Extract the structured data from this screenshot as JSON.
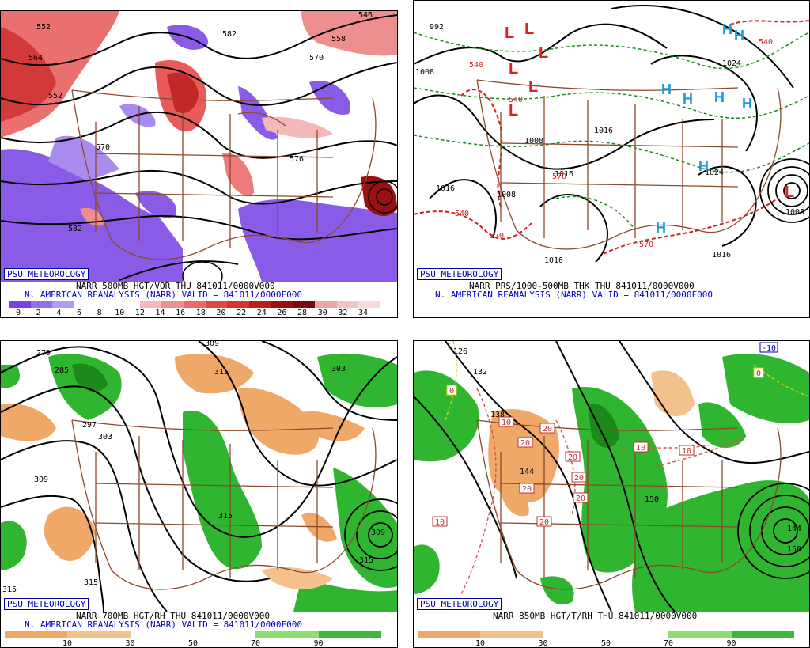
{
  "panels": [
    {
      "id": "vorticity",
      "brand": "PSU METEOROLOGY",
      "caption_line1": "NARR 500MB HGT/VOR THU 841011/0000V000",
      "caption_line2": "N. AMERICAN REANALYSIS (NARR) VALID = 841011/0000F000",
      "colorbar": {
        "labels": [
          "0",
          "2",
          "4",
          "6",
          "8",
          "10",
          "12",
          "14",
          "16",
          "18",
          "20",
          "22",
          "24",
          "26",
          "28",
          "30",
          "32",
          "34"
        ],
        "colors": [
          "#7b3fe4",
          "#9070e8",
          "#b09cf0",
          "#ffffff",
          "#ffffff",
          "#ffffff",
          "#ffffff",
          "#f4b8b8",
          "#ee8f8f",
          "#e96a6a",
          "#e04848",
          "#d23434",
          "#b81e1e",
          "#9a1010",
          "#7a0a0a",
          "#e9a6a6",
          "#f2c4c4",
          "#f9dada"
        ]
      },
      "contour_labels": [
        "552",
        "570",
        "558",
        "546",
        "582",
        "564",
        "552",
        "576",
        "570",
        "582"
      ]
    },
    {
      "id": "thickness",
      "brand": "PSU METEOROLOGY",
      "caption_line1": "NARR PRS/1000-500MB THK THU 841011/0000V000",
      "caption_line2": "N. AMERICAN REANALYSIS (NARR) VALID = 841011/0000F000",
      "pressure_labels": [
        "992",
        "1008",
        "1016",
        "1008",
        "1008",
        "1016",
        "1016",
        "1016",
        "1016",
        "1024",
        "1008",
        "1024"
      ],
      "thickness_labels": [
        "540",
        "540",
        "570",
        "540",
        "570",
        "570",
        "540"
      ],
      "centers": {
        "low": "L",
        "high": "H"
      }
    },
    {
      "id": "rh700",
      "brand": "PSU METEOROLOGY",
      "caption_line1": "NARR 700MB HGT/RH THU 841011/0000V000",
      "caption_line2": "N. AMERICAN REANALYSIS (NARR) VALID = 841011/0000F000",
      "colorbar": {
        "labels": [
          "10",
          "30",
          "50",
          "70",
          "90"
        ],
        "colors": [
          "#f0a868",
          "#f4c08c",
          "#ffffff",
          "#ffffff",
          "#8fdc6f",
          "#3cb83c"
        ]
      },
      "contour_labels": [
        "279",
        "285",
        "297",
        "303",
        "309",
        "315",
        "309",
        "315",
        "303",
        "309",
        "315",
        "315",
        "315",
        "309",
        "297"
      ]
    },
    {
      "id": "t850",
      "brand": "PSU METEOROLOGY",
      "caption_line1": "NARR 850MB HGT/T/RH THU 841011/0000V000",
      "caption_line2": "",
      "colorbar": {
        "labels": [
          "10",
          "30",
          "50",
          "70",
          "90"
        ],
        "colors": [
          "#f0a868",
          "#f4c08c",
          "#ffffff",
          "#ffffff",
          "#8fdc6f",
          "#3cb83c"
        ]
      },
      "contour_labels": [
        "126",
        "132",
        "138",
        "144",
        "150",
        "144",
        "150"
      ],
      "temp_labels": [
        "0",
        "10",
        "20",
        "20",
        "20",
        "20",
        "20",
        "20",
        "20",
        "10",
        "10",
        "10",
        "-10",
        "0"
      ]
    }
  ]
}
